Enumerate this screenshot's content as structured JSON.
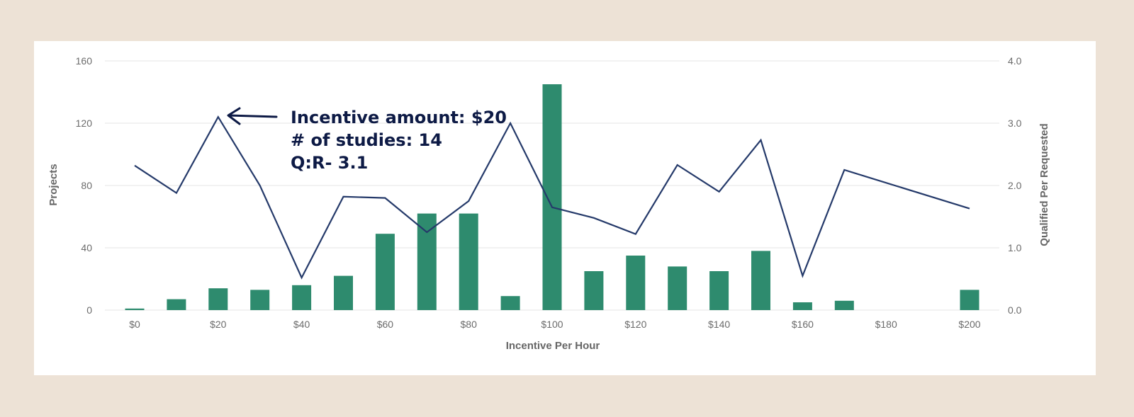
{
  "chart_data": {
    "type": "bar+line",
    "x": [
      0,
      10,
      20,
      30,
      40,
      50,
      60,
      70,
      80,
      90,
      100,
      110,
      120,
      130,
      140,
      150,
      160,
      170,
      200
    ],
    "xticks": [
      0,
      20,
      40,
      60,
      80,
      100,
      120,
      140,
      160,
      180,
      200
    ],
    "xtick_labels": [
      "$0",
      "$20",
      "$40",
      "$60",
      "$80",
      "$100",
      "$120",
      "$140",
      "$160",
      "$180",
      "$200"
    ],
    "xlim": [
      0,
      200
    ],
    "xlabel": "Incentive Per Hour",
    "series": [
      {
        "name": "Projects",
        "type": "bar",
        "axis": "left",
        "color": "#2e8b6e",
        "values": [
          1,
          7,
          14,
          13,
          16,
          22,
          49,
          62,
          62,
          9,
          145,
          25,
          35,
          28,
          25,
          38,
          5,
          6,
          13
        ]
      },
      {
        "name": "Qualified Per Requested",
        "type": "line",
        "axis": "right",
        "color": "#253a6a",
        "values": [
          2.32,
          1.88,
          3.1,
          2.0,
          0.52,
          1.82,
          1.8,
          1.25,
          1.75,
          3.0,
          1.65,
          1.48,
          1.22,
          2.33,
          1.9,
          2.73,
          0.55,
          2.25,
          1.63
        ]
      }
    ],
    "yleft": {
      "label": "Projects",
      "lim": [
        0,
        160
      ],
      "ticks": [
        "0",
        "40",
        "80",
        "120",
        "160"
      ]
    },
    "yright": {
      "label": "Qualified Per Requested",
      "lim": [
        0,
        4.0
      ],
      "ticks": [
        "0.0",
        "1.0",
        "2.0",
        "3.0",
        "4.0"
      ]
    },
    "grid": true,
    "annotation": {
      "target_x": 20,
      "lines": [
        "Incentive amount: $20",
        "# of studies: 14",
        "Q:R- 3.1"
      ]
    }
  }
}
